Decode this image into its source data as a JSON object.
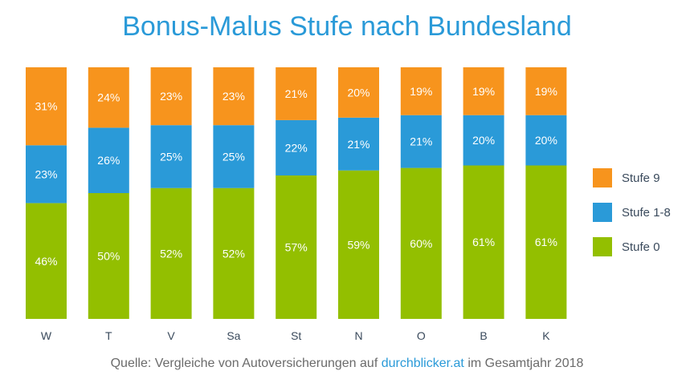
{
  "title": "Bonus-Malus Stufe nach Bundesland",
  "footer": {
    "prefix": "Quelle: Vergleiche von Autoversicherungen auf ",
    "link": "durchblicker.at",
    "suffix": " im Gesamtjahr 2018"
  },
  "legend": [
    {
      "label": "Stufe 9",
      "color": "#f7941d"
    },
    {
      "label": "Stufe 1-8",
      "color": "#2a9ad8"
    },
    {
      "label": "Stufe 0",
      "color": "#93bf00"
    }
  ],
  "chart_data": {
    "type": "bar",
    "stacked": true,
    "categories": [
      "W",
      "T",
      "V",
      "Sa",
      "St",
      "N",
      "O",
      "B",
      "K"
    ],
    "series": [
      {
        "name": "Stufe 0",
        "color": "#93bf00",
        "values": [
          46,
          50,
          52,
          52,
          57,
          59,
          60,
          61,
          61
        ]
      },
      {
        "name": "Stufe 1-8",
        "color": "#2a9ad8",
        "values": [
          23,
          26,
          25,
          25,
          22,
          21,
          21,
          20,
          20
        ]
      },
      {
        "name": "Stufe 9",
        "color": "#f7941d",
        "values": [
          31,
          24,
          23,
          23,
          21,
          20,
          19,
          19,
          19
        ]
      }
    ],
    "value_suffix": "%",
    "ylim": [
      0,
      100
    ],
    "legend_position": "right"
  }
}
